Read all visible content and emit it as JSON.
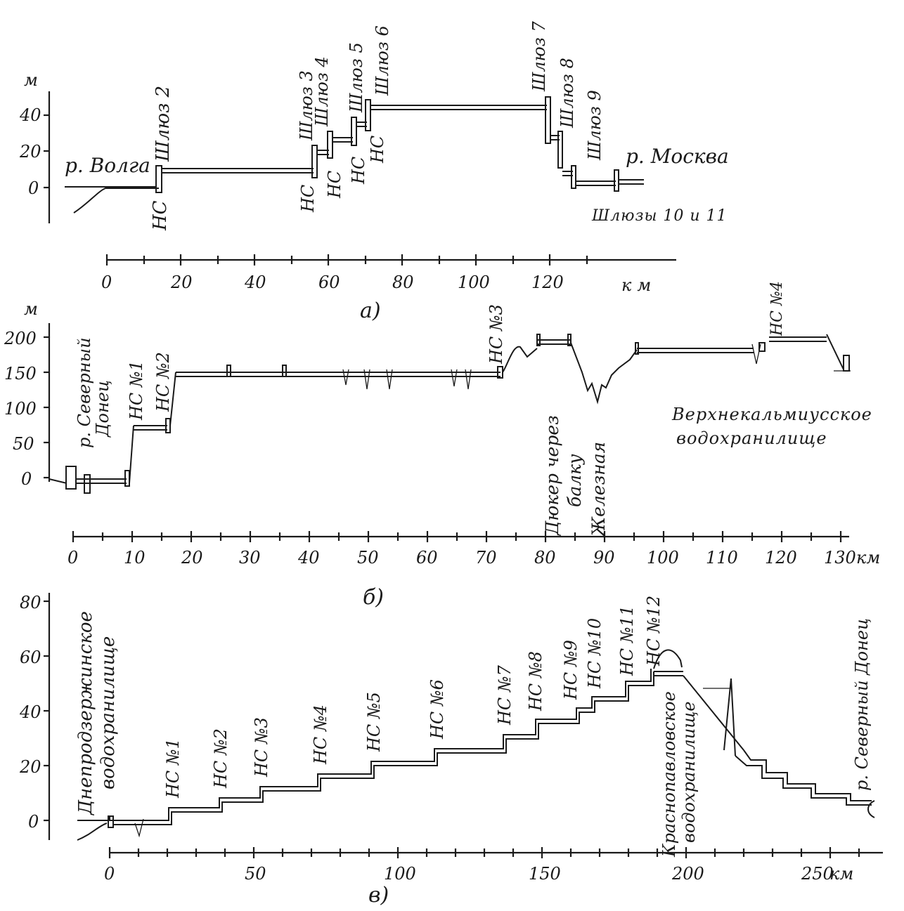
{
  "panel_a": {
    "caption": "а)",
    "y_unit": "м",
    "x_unit": "км",
    "y_ticks": [
      "40",
      "20",
      "0"
    ],
    "x_ticks": [
      "0",
      "20",
      "40",
      "60",
      "80",
      "100",
      "120"
    ],
    "labels": {
      "volga": "р. Волга",
      "moskva": "р. Москва",
      "lock2": "Шлюз 2",
      "lock3": "Шлюз 3",
      "lock4": "Шлюз 4",
      "lock5": "Шлюз 5",
      "lock6": "Шлюз 6",
      "lock7": "Шлюз 7",
      "lock8": "Шлюз 8",
      "lock9": "Шлюз 9",
      "locks1011": "Шлюзы 10 и 11",
      "ps1": "НС",
      "ps2": "НС",
      "ps3": "НС",
      "ps4": "НС",
      "ps5": "НС"
    }
  },
  "panel_b": {
    "caption": "б)",
    "y_unit": "м",
    "x_unit": "км",
    "y_ticks": [
      "200",
      "150",
      "100",
      "50",
      "0"
    ],
    "x_ticks": [
      "0",
      "10",
      "20",
      "30",
      "40",
      "50",
      "60",
      "70",
      "80",
      "90",
      "100",
      "110",
      "120",
      "130"
    ],
    "labels": {
      "donets_1": "р. Северный",
      "donets_2": "Донец",
      "ps1": "НС №1",
      "ps2": "НС №2",
      "ps3": "НС №3",
      "ps4": "НС №4",
      "duker_1": "Дюкер через",
      "duker_2": "балку",
      "duker_3": "Железная",
      "reservoir_1": "Верхнекальмиусское",
      "reservoir_2": "водохранилище"
    }
  },
  "panel_c": {
    "caption": "в)",
    "x_unit": "км",
    "y_ticks": [
      "80",
      "60",
      "40",
      "20",
      "0"
    ],
    "x_ticks": [
      "0",
      "50",
      "100",
      "150",
      "200",
      "250"
    ],
    "labels": {
      "dnepr_1": "Днепродзержинское",
      "dnepr_2": "водохранилище",
      "ps1": "НС №1",
      "ps2": "НС №2",
      "ps3": "НС №3",
      "ps4": "НС №4",
      "ps5": "НС №5",
      "ps6": "НС №6",
      "ps7": "НС №7",
      "ps8": "НС №8",
      "ps9": "НС №9",
      "ps10": "НС №10",
      "ps11": "НС №11",
      "ps12": "НС №12",
      "krasno_1": "Краснопавловское",
      "krasno_2": "водохранилище",
      "donets": "р. Северный Донец"
    }
  }
}
